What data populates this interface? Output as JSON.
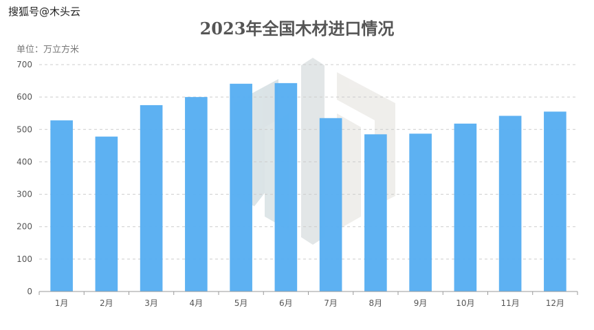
{
  "watermark": "搜狐号@木头云",
  "chart_data": {
    "type": "bar",
    "title": "2023年全国木材进口情况",
    "unit": "单位：万立方米",
    "categories": [
      "1月",
      "2月",
      "3月",
      "4月",
      "5月",
      "6月",
      "7月",
      "8月",
      "9月",
      "10月",
      "11月",
      "12月"
    ],
    "values": [
      528,
      478,
      575,
      600,
      641,
      643,
      535,
      485,
      487,
      518,
      542,
      555
    ],
    "ylim": [
      0,
      700
    ],
    "yticks": [
      0,
      100,
      200,
      300,
      400,
      500,
      600,
      700
    ],
    "grid": true,
    "bar_color": "#58aef2"
  }
}
